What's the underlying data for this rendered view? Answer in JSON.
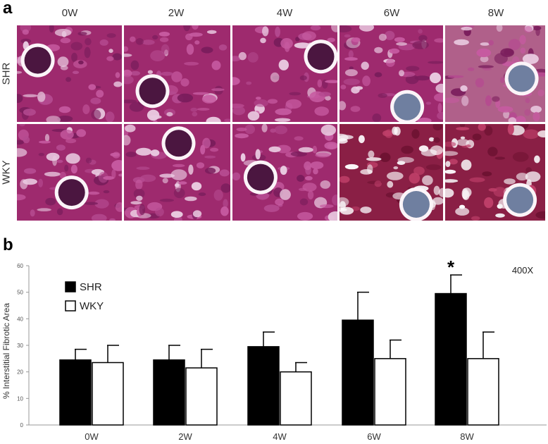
{
  "panel_a": {
    "letter": "a",
    "columns": [
      "0W",
      "2W",
      "4W",
      "6W",
      "8W"
    ],
    "rows": [
      "SHR",
      "WKY"
    ]
  },
  "panel_b": {
    "letter": "b"
  },
  "chart_data": {
    "type": "bar",
    "categories": [
      "0W",
      "2W",
      "4W",
      "6W",
      "8W"
    ],
    "series": [
      {
        "name": "SHR",
        "values": [
          24.5,
          24.5,
          29.5,
          39.5,
          49.5
        ],
        "errors": [
          4,
          5.5,
          5.5,
          10.5,
          7
        ],
        "color": "#000000"
      },
      {
        "name": "WKY",
        "values": [
          23.5,
          21.5,
          20,
          25,
          25
        ],
        "errors": [
          6.5,
          7,
          3.5,
          7,
          10
        ],
        "color": "#ffffff"
      }
    ],
    "ylabel": "% Interstitial Fibrotic Area",
    "ylim": [
      0,
      60
    ],
    "yticks": [
      0,
      10,
      20,
      30,
      40,
      50,
      60
    ],
    "annotation": "400X",
    "significance": {
      "category": "8W",
      "series": "SHR",
      "marker": "*"
    },
    "legend_position": "top-left"
  }
}
